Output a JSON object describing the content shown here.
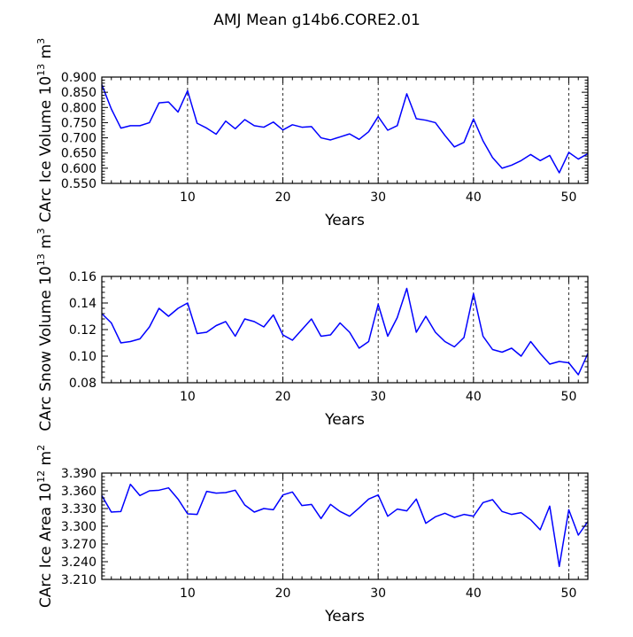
{
  "title": "AMJ Mean g14b6.CORE2.01",
  "line_color": "#0000ff",
  "chart_data": [
    {
      "type": "line",
      "ylabel": "CArc Ice Volume 10",
      "ylabel_exp1": "13",
      "ylabel_unit": " m",
      "ylabel_exp2": "3",
      "xlabel": "Years",
      "xlim": [
        1,
        52
      ],
      "ylim": [
        0.55,
        0.9
      ],
      "x_ticks": [
        10,
        20,
        30,
        40,
        50
      ],
      "x_tick_labels": [
        "10",
        "20",
        "30",
        "40",
        "50"
      ],
      "y_ticks": [
        0.55,
        0.6,
        0.65,
        0.7,
        0.75,
        0.8,
        0.85,
        0.9
      ],
      "y_tick_labels": [
        "0.550",
        "0.600",
        "0.650",
        "0.700",
        "0.750",
        "0.800",
        "0.850",
        "0.900"
      ],
      "x": [
        1,
        2,
        3,
        4,
        5,
        6,
        7,
        8,
        9,
        10,
        11,
        12,
        13,
        14,
        15,
        16,
        17,
        18,
        19,
        20,
        21,
        22,
        23,
        24,
        25,
        26,
        27,
        28,
        29,
        30,
        31,
        32,
        33,
        34,
        35,
        36,
        37,
        38,
        39,
        40,
        41,
        42,
        43,
        44,
        45,
        46,
        47,
        48,
        49,
        50,
        51,
        52
      ],
      "values": [
        0.875,
        0.795,
        0.732,
        0.74,
        0.74,
        0.75,
        0.815,
        0.818,
        0.785,
        0.855,
        0.748,
        0.732,
        0.712,
        0.755,
        0.73,
        0.76,
        0.74,
        0.735,
        0.752,
        0.726,
        0.743,
        0.735,
        0.737,
        0.7,
        0.693,
        0.703,
        0.713,
        0.695,
        0.72,
        0.77,
        0.725,
        0.74,
        0.845,
        0.763,
        0.758,
        0.75,
        0.708,
        0.67,
        0.685,
        0.762,
        0.69,
        0.635,
        0.6,
        0.61,
        0.625,
        0.645,
        0.625,
        0.642,
        0.585,
        0.652,
        0.63,
        0.648
      ]
    },
    {
      "type": "line",
      "ylabel": "CArc Snow Volume 10",
      "ylabel_exp1": "13",
      "ylabel_unit": " m",
      "ylabel_exp2": "3",
      "xlabel": "Years",
      "xlim": [
        1,
        52
      ],
      "ylim": [
        0.08,
        0.16
      ],
      "x_ticks": [
        10,
        20,
        30,
        40,
        50
      ],
      "x_tick_labels": [
        "10",
        "20",
        "30",
        "40",
        "50"
      ],
      "y_ticks": [
        0.08,
        0.1,
        0.12,
        0.14,
        0.16
      ],
      "y_tick_labels": [
        "0.08",
        "0.10",
        "0.12",
        "0.14",
        "0.16"
      ],
      "x": [
        1,
        2,
        3,
        4,
        5,
        6,
        7,
        8,
        9,
        10,
        11,
        12,
        13,
        14,
        15,
        16,
        17,
        18,
        19,
        20,
        21,
        22,
        23,
        24,
        25,
        26,
        27,
        28,
        29,
        30,
        31,
        32,
        33,
        34,
        35,
        36,
        37,
        38,
        39,
        40,
        41,
        42,
        43,
        44,
        45,
        46,
        47,
        48,
        49,
        50,
        51,
        52
      ],
      "values": [
        0.132,
        0.125,
        0.11,
        0.111,
        0.113,
        0.122,
        0.136,
        0.13,
        0.136,
        0.14,
        0.117,
        0.118,
        0.123,
        0.126,
        0.115,
        0.128,
        0.126,
        0.122,
        0.131,
        0.116,
        0.112,
        0.12,
        0.128,
        0.115,
        0.116,
        0.125,
        0.118,
        0.106,
        0.111,
        0.139,
        0.115,
        0.129,
        0.151,
        0.118,
        0.13,
        0.118,
        0.111,
        0.107,
        0.114,
        0.147,
        0.115,
        0.105,
        0.103,
        0.106,
        0.1,
        0.111,
        0.102,
        0.094,
        0.096,
        0.095,
        0.086,
        0.102
      ]
    },
    {
      "type": "line",
      "ylabel": "CArc Ice Area 10",
      "ylabel_exp1": "12",
      "ylabel_unit": " m",
      "ylabel_exp2": "2",
      "xlabel": "Years",
      "xlim": [
        1,
        52
      ],
      "ylim": [
        3.21,
        3.39
      ],
      "x_ticks": [
        10,
        20,
        30,
        40,
        50
      ],
      "x_tick_labels": [
        "10",
        "20",
        "30",
        "40",
        "50"
      ],
      "y_ticks": [
        3.21,
        3.24,
        3.27,
        3.3,
        3.33,
        3.36,
        3.39
      ],
      "y_tick_labels": [
        "3.210",
        "3.240",
        "3.270",
        "3.300",
        "3.330",
        "3.360",
        "3.390"
      ],
      "x": [
        1,
        2,
        3,
        4,
        5,
        6,
        7,
        8,
        9,
        10,
        11,
        12,
        13,
        14,
        15,
        16,
        17,
        18,
        19,
        20,
        21,
        22,
        23,
        24,
        25,
        26,
        27,
        28,
        29,
        30,
        31,
        32,
        33,
        34,
        35,
        36,
        37,
        38,
        39,
        40,
        41,
        42,
        43,
        44,
        45,
        46,
        47,
        48,
        49,
        50,
        51,
        52
      ],
      "values": [
        3.352,
        3.324,
        3.325,
        3.371,
        3.352,
        3.36,
        3.361,
        3.365,
        3.346,
        3.321,
        3.32,
        3.359,
        3.356,
        3.357,
        3.361,
        3.336,
        3.324,
        3.33,
        3.328,
        3.353,
        3.358,
        3.335,
        3.337,
        3.313,
        3.337,
        3.325,
        3.317,
        3.331,
        3.346,
        3.353,
        3.317,
        3.329,
        3.326,
        3.346,
        3.305,
        3.316,
        3.322,
        3.315,
        3.32,
        3.317,
        3.34,
        3.345,
        3.325,
        3.32,
        3.323,
        3.311,
        3.294,
        3.334,
        3.232,
        3.328,
        3.285,
        3.308
      ]
    }
  ]
}
